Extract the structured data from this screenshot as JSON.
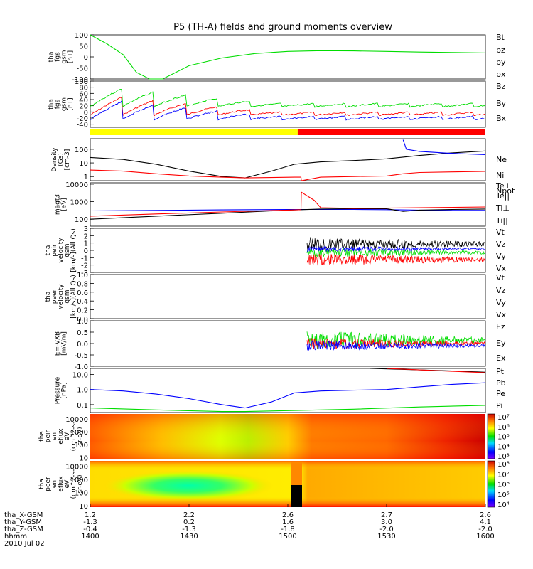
{
  "title": "P5 (TH-A) fields and ground moments overview",
  "colors": {
    "red": "#ff0000",
    "green": "#00dd00",
    "blue": "#0000ff",
    "black": "#000000",
    "yellow": "#ffff00"
  },
  "chart_data": [
    {
      "type": "line",
      "name": "fgs_gsm",
      "ylabel": [
        "tha",
        "fgs",
        "gsm",
        "[nT]"
      ],
      "ylim": [
        -100,
        100
      ],
      "yticks": [
        "100",
        "50",
        "0",
        "-50",
        "-100"
      ],
      "ytick_values": [
        100,
        50,
        0,
        -50,
        -100
      ],
      "legend": [
        {
          "label": "Bt",
          "color": "#000000"
        },
        {
          "label": "bz",
          "color": "#ff0000"
        },
        {
          "label": "by",
          "color": "#00dd00"
        },
        {
          "label": "bx",
          "color": "#0000ff"
        }
      ],
      "series": [
        {
          "name": "by",
          "color": "#00dd00",
          "x": [
            0,
            5,
            10,
            14,
            18,
            22,
            26,
            30,
            40,
            50,
            60,
            70,
            80,
            90,
            100,
            110,
            120
          ],
          "y": [
            100,
            60,
            10,
            -70,
            -115,
            -100,
            -70,
            -40,
            -5,
            15,
            25,
            28,
            27,
            25,
            22,
            20,
            18
          ]
        }
      ]
    },
    {
      "type": "line",
      "name": "fgs_dsl",
      "ylabel": [
        "tha",
        "fgs",
        "gsm",
        "[nT]"
      ],
      "ylim": [
        -50,
        100
      ],
      "yticks": [
        "100",
        "80",
        "60",
        "40",
        "20",
        "0",
        "-20",
        "-40"
      ],
      "ytick_values": [
        100,
        80,
        60,
        40,
        20,
        0,
        -20,
        -40
      ],
      "legend": [
        {
          "label": "Bz",
          "color": "#ff0000"
        },
        {
          "label": "By",
          "color": "#00dd00"
        },
        {
          "label": "Bx",
          "color": "#0000ff"
        }
      ]
    },
    {
      "type": "line",
      "name": "density",
      "yscale": "log",
      "ylabel": [
        "Density",
        "(Gs)",
        "[cm-3]"
      ],
      "ylim": [
        0.5,
        600
      ],
      "yticks": [
        "100",
        "10",
        "1"
      ],
      "ytick_values": [
        100,
        10,
        1
      ],
      "legend": [
        {
          "label": "Ne",
          "color": "#ff0000"
        },
        {
          "label": "Ni",
          "color": "#000000"
        },
        {
          "label": "Npot",
          "color": "#0000ff"
        }
      ],
      "series": [
        {
          "name": "Ni",
          "color": "#000000",
          "x": [
            0,
            10,
            20,
            30,
            40,
            47,
            55,
            62,
            70,
            80,
            90,
            100,
            110,
            120
          ],
          "y": [
            25,
            18,
            8,
            2.5,
            1,
            0.8,
            2.5,
            8,
            12,
            15,
            20,
            35,
            55,
            75
          ]
        },
        {
          "name": "Ne",
          "color": "#ff0000",
          "x": [
            0,
            10,
            20,
            30,
            40,
            47,
            55,
            62,
            64,
            64.1,
            70,
            80,
            90,
            95,
            100,
            110,
            120
          ],
          "y": [
            3,
            2.5,
            1.6,
            1.1,
            0.9,
            0.8,
            0.85,
            0.9,
            0.9,
            0.3,
            0.9,
            1.0,
            1.1,
            1.6,
            2.0,
            2.2,
            2.4
          ]
        },
        {
          "name": "Npot",
          "color": "#0000ff",
          "x": [
            95,
            96,
            100,
            110,
            120
          ],
          "y": [
            500,
            100,
            70,
            50,
            40
          ]
        }
      ]
    },
    {
      "type": "line",
      "name": "temperature",
      "yscale": "log",
      "ylabel": [
        "magt3",
        "[eV]"
      ],
      "ylim": [
        40,
        12000
      ],
      "yticks": [
        "10000",
        "1000",
        "100"
      ],
      "ytick_values": [
        10000,
        1000,
        100
      ],
      "legend": [
        {
          "label": "Te⊥",
          "color": "#ff0000"
        },
        {
          "label": "Te||",
          "color": "#000000"
        },
        {
          "label": "Ti⊥",
          "color": "#0000ff"
        },
        {
          "label": "Ti||",
          "color": "#00dd00"
        }
      ],
      "series": [
        {
          "name": "Ti⊥",
          "color": "#0000ff",
          "x": [
            0,
            20,
            40,
            60,
            80,
            90,
            100,
            110,
            120
          ],
          "y": [
            300,
            320,
            340,
            360,
            360,
            350,
            330,
            320,
            320
          ]
        },
        {
          "name": "Te||",
          "color": "#000000",
          "x": [
            0,
            20,
            40,
            60,
            70,
            80,
            90,
            95,
            100,
            110,
            120
          ],
          "y": [
            100,
            150,
            220,
            330,
            380,
            400,
            390,
            280,
            330,
            360,
            380
          ]
        },
        {
          "name": "Te⊥",
          "color": "#ff0000",
          "x": [
            0,
            20,
            40,
            60,
            64,
            64.1,
            68,
            70,
            80,
            90,
            100,
            110,
            120
          ],
          "y": [
            150,
            200,
            260,
            330,
            350,
            3500,
            1200,
            450,
            420,
            430,
            450,
            470,
            500
          ]
        }
      ]
    },
    {
      "type": "line",
      "name": "peir_velocity",
      "ylabel": [
        "tha",
        "peir",
        "velocity",
        "gsm",
        "[km/s](All Qs)"
      ],
      "ylim": [
        -3,
        3
      ],
      "yticks": [
        "3",
        "2",
        "1",
        "0",
        "-1",
        "-2",
        "-3"
      ],
      "ytick_values": [
        3,
        2,
        1,
        0,
        -1,
        -2,
        -3
      ],
      "legend": [
        {
          "label": "Vt",
          "color": "#000000"
        },
        {
          "label": "Vz",
          "color": "#ff0000"
        },
        {
          "label": "Vy",
          "color": "#00dd00"
        },
        {
          "label": "Vx",
          "color": "#0000ff"
        }
      ]
    },
    {
      "type": "line",
      "name": "peer_velocity",
      "ylabel": [
        "tha",
        "peer",
        "velocity",
        "gsm",
        "[km/s](All Qs)"
      ],
      "ylim": [
        0,
        1
      ],
      "yticks": [
        "1.0",
        "0.8",
        "0.6",
        "0.4",
        "0.2",
        "0.0"
      ],
      "ytick_values": [
        1,
        0.8,
        0.6,
        0.4,
        0.2,
        0
      ],
      "legend": [
        {
          "label": "Vt",
          "color": "#000000"
        },
        {
          "label": "Vz",
          "color": "#ff0000"
        },
        {
          "label": "Vy",
          "color": "#00dd00"
        },
        {
          "label": "Vx",
          "color": "#0000ff"
        }
      ]
    },
    {
      "type": "line",
      "name": "efield",
      "ylabel": [
        "E=-VXB",
        "[mV/m]"
      ],
      "ylim": [
        -1,
        1
      ],
      "yticks": [
        "1.0",
        "0.5",
        "0.0",
        "-0.5",
        "-1.0"
      ],
      "ytick_values": [
        1,
        0.5,
        0,
        -0.5,
        -1
      ],
      "legend": [
        {
          "label": "Ez",
          "color": "#ff0000"
        },
        {
          "label": "Ey",
          "color": "#00dd00"
        },
        {
          "label": "Ex",
          "color": "#0000ff"
        }
      ]
    },
    {
      "type": "line",
      "name": "pressure",
      "yscale": "log",
      "ylabel": [
        "Pressure",
        "[nPa]"
      ],
      "ylim": [
        0.03,
        25
      ],
      "yticks": [
        "10.0",
        "1.0",
        "0.1"
      ],
      "ytick_values": [
        10,
        1,
        0.1
      ],
      "legend": [
        {
          "label": "Pt",
          "color": "#000000"
        },
        {
          "label": "Pb",
          "color": "#ff0000"
        },
        {
          "label": "Pe",
          "color": "#00dd00"
        },
        {
          "label": "Pi",
          "color": "#0000ff"
        }
      ],
      "series": [
        {
          "name": "Pi",
          "color": "#0000ff",
          "x": [
            0,
            10,
            20,
            30,
            40,
            47,
            55,
            62,
            70,
            80,
            90,
            100,
            110,
            120
          ],
          "y": [
            1.0,
            0.8,
            0.5,
            0.25,
            0.1,
            0.06,
            0.15,
            0.6,
            0.8,
            0.9,
            1.0,
            1.5,
            2.2,
            2.8
          ]
        },
        {
          "name": "Pe",
          "color": "#00dd00",
          "x": [
            0,
            20,
            40,
            47,
            60,
            80,
            100,
            120
          ],
          "y": [
            0.06,
            0.045,
            0.035,
            0.035,
            0.04,
            0.05,
            0.07,
            0.09
          ]
        },
        {
          "name": "Pt",
          "color": "#000000",
          "x": [
            85,
            100,
            110,
            120
          ],
          "y": [
            25,
            20,
            17,
            14
          ]
        },
        {
          "name": "Pb",
          "color": "#ff0000",
          "x": [
            90,
            100,
            110,
            120
          ],
          "y": [
            25,
            20,
            16,
            13
          ]
        }
      ]
    },
    {
      "type": "heatmap",
      "name": "peir_spec",
      "yscale": "log",
      "ylabel": [
        "tha",
        "peir",
        "en",
        "eflux",
        "eV",
        "(cm^2-s-",
        "sr-eV)"
      ],
      "ylim": [
        8,
        25000
      ],
      "yticks": [
        "10000",
        "1000",
        "100",
        "10"
      ],
      "ytick_values": [
        10000,
        1000,
        100,
        10
      ],
      "colorbar": {
        "ticks": [
          "10⁷",
          "10⁶",
          "10⁵",
          "10⁴",
          "10³"
        ]
      }
    },
    {
      "type": "heatmap",
      "name": "peer_spec",
      "yscale": "log",
      "ylabel": [
        "tha",
        "peer",
        "en",
        "eflux",
        "eV",
        "(cm^2-s-",
        "sr-eV)"
      ],
      "ylim": [
        8,
        25000
      ],
      "yticks": [
        "10000",
        "1000",
        "100",
        "10"
      ],
      "ytick_values": [
        10000,
        1000,
        100,
        10
      ],
      "colorbar": {
        "ticks": [
          "10⁸",
          "10⁷",
          "10⁶",
          "10⁵",
          "10⁴"
        ]
      }
    }
  ],
  "xaxis": {
    "row_labels": [
      "tha_X-GSM",
      "tha_Y-GSM",
      "tha_Z-GSM",
      "hhmm",
      "2010 Jul 02"
    ],
    "x": [
      0,
      30,
      60,
      90,
      120
    ],
    "columns": [
      [
        "1.2",
        "-1.3",
        "-0.4",
        "1400"
      ],
      [
        "2.2",
        "0.2",
        "-1.3",
        "1430"
      ],
      [
        "2.6",
        "1.6",
        "-1.8",
        "1500"
      ],
      [
        "2.7",
        "3.0",
        "-2.0",
        "1530"
      ],
      [
        "2.6",
        "4.1",
        "-2.0",
        "1600"
      ]
    ]
  },
  "mode_bar": {
    "segments": [
      {
        "from": 0,
        "to": 63,
        "color": "#ffff00"
      },
      {
        "from": 63,
        "to": 120,
        "color": "#ff0000"
      }
    ]
  }
}
